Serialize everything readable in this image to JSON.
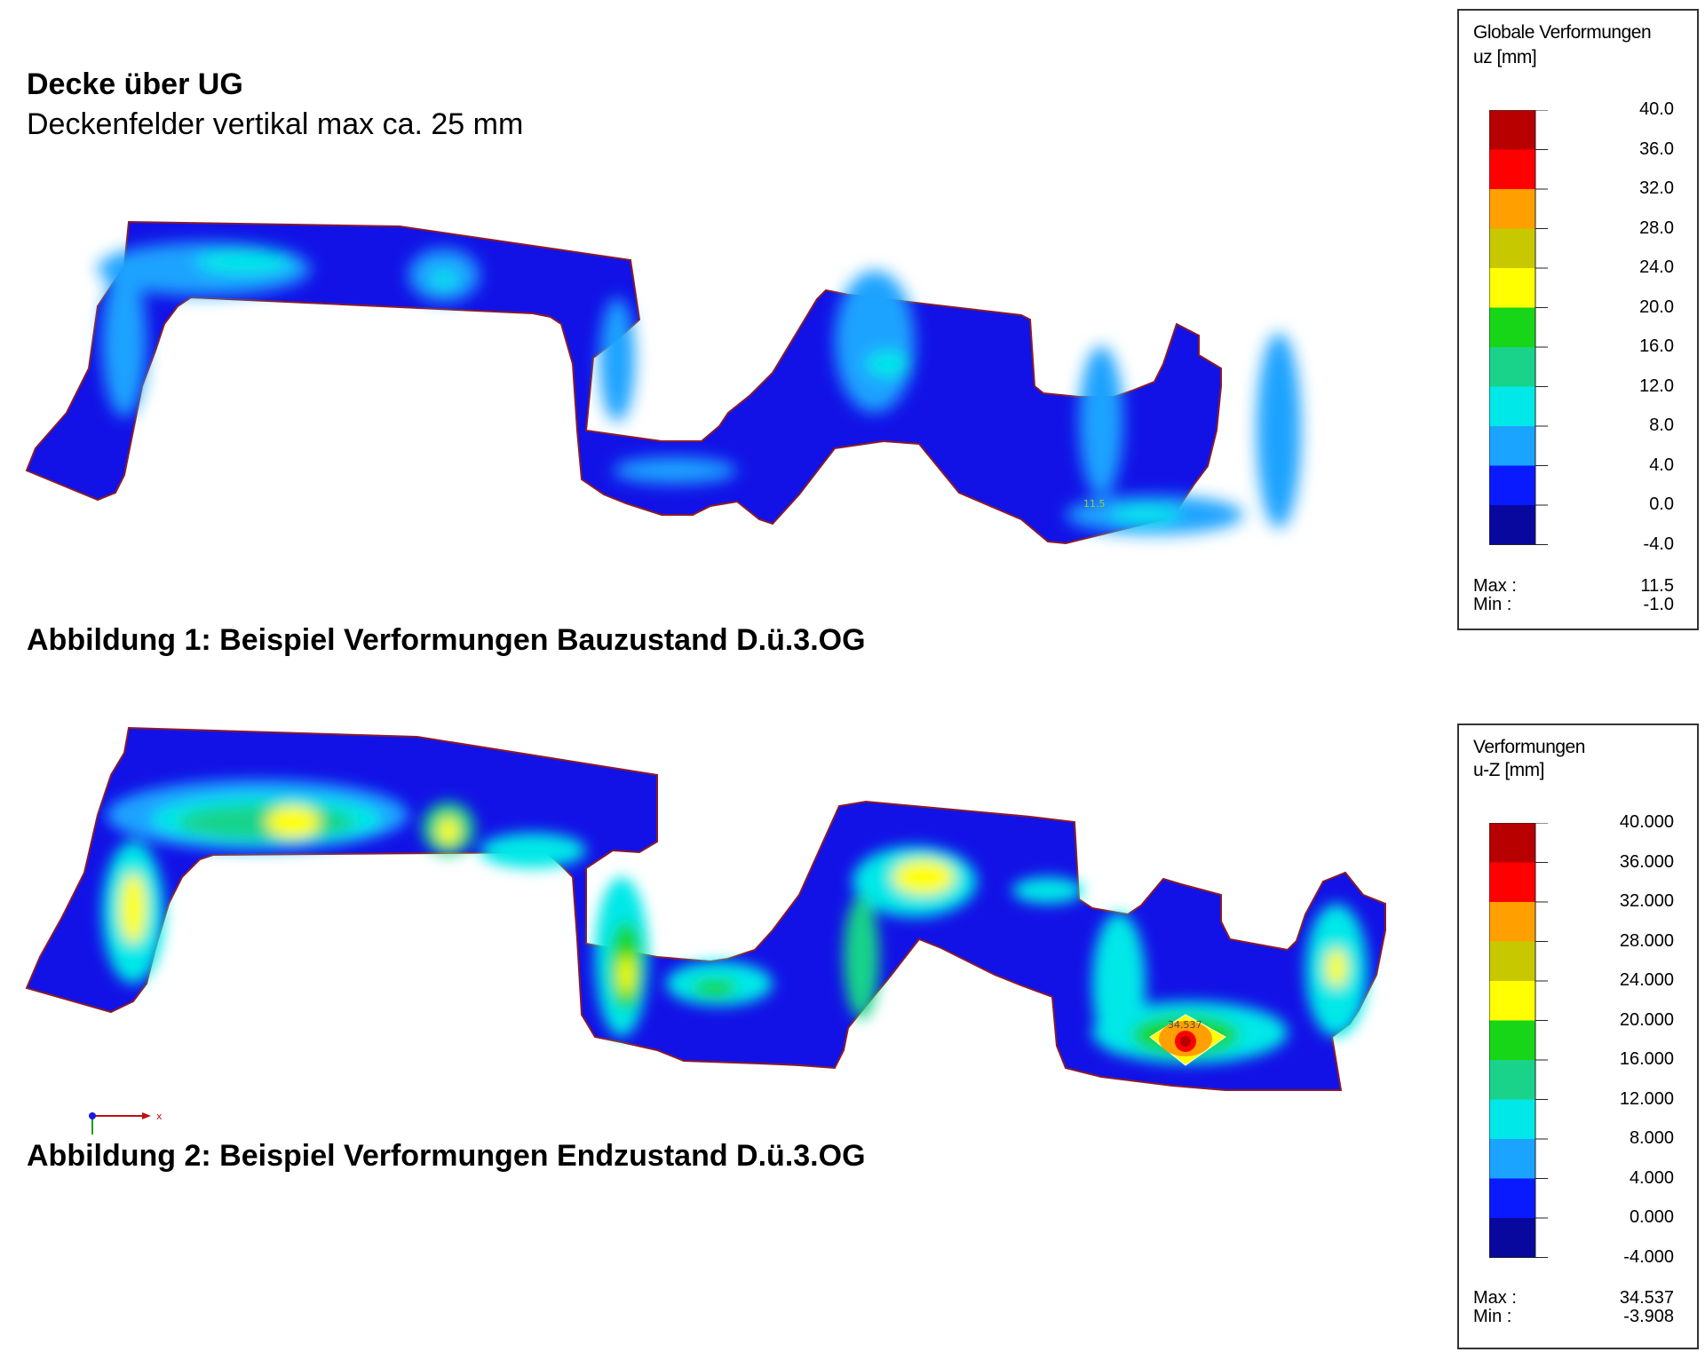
{
  "heading": "Decke über UG",
  "subheading": "Deckenfelder vertikal max ca. 25 mm",
  "figures": [
    {
      "caption": "Abbildung 1: Beispiel Verformungen Bauzustand D.ü.3.OG",
      "point_label": "11.5",
      "legend": {
        "title_line1": "Globale Verformungen",
        "title_line2": "uz [mm]",
        "labels": [
          "40.0",
          "36.0",
          "32.0",
          "28.0",
          "24.0",
          "20.0",
          "16.0",
          "12.0",
          "8.0",
          "4.0",
          "0.0",
          "-4.0"
        ],
        "max_label": "Max :",
        "max_value": "11.5",
        "min_label": "Min :",
        "min_value": "-1.0"
      }
    },
    {
      "caption": "Abbildung 2: Beispiel Verformungen Endzustand D.ü.3.OG",
      "point_label": "34.537",
      "legend": {
        "title_line1": "Verformungen",
        "title_line2": "u-Z [mm]",
        "labels": [
          "40.000",
          "36.000",
          "32.000",
          "28.000",
          "24.000",
          "20.000",
          "16.000",
          "12.000",
          "8.000",
          "4.000",
          "0.000",
          "-4.000"
        ],
        "max_label": "Max :",
        "max_value": "34.537",
        "min_label": "Min :",
        "min_value": "-3.908"
      }
    }
  ],
  "legend_colors": [
    "#b80000",
    "#ff0000",
    "#ff9f00",
    "#c8c800",
    "#ffff00",
    "#17d617",
    "#19d38a",
    "#00e8e8",
    "#1aa3ff",
    "#0a1aff",
    "#08089e"
  ],
  "axis_label": "x"
}
